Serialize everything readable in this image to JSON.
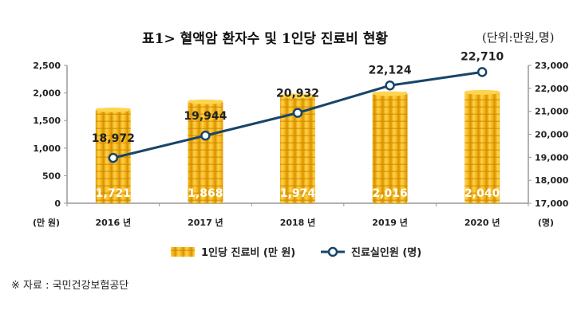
{
  "header": {
    "title": "표1> 혈액암 환자수 및 1인당 진료비 현황",
    "unit": "(단위:만원,명)"
  },
  "source": "※ 자료 : 국민건강보험공단",
  "colors": {
    "bar": "#f2b21c",
    "line": "#17456b"
  },
  "chart_data": {
    "type": "bar+line",
    "categories": [
      "2016 년",
      "2017 년",
      "2018 년",
      "2019 년",
      "2020 년"
    ],
    "series": [
      {
        "name": "1인당 진료비 (만 원)",
        "type": "bar",
        "axis": "left",
        "values": [
          1721,
          1868,
          1974,
          2016,
          2040
        ],
        "labels": [
          "1,721",
          "1,868",
          "1,974",
          "2,016",
          "2,040"
        ]
      },
      {
        "name": "진료실인원 (명)",
        "type": "line",
        "axis": "right",
        "values": [
          18972,
          19944,
          20932,
          22124,
          22710
        ],
        "labels": [
          "18,972",
          "19,944",
          "20,932",
          "22,124",
          "22,710"
        ]
      }
    ],
    "left_axis": {
      "label": "(만 원)",
      "range": [
        0,
        2500
      ],
      "ticks": [
        "0",
        "500",
        "1,000",
        "1,500",
        "2,000",
        "2,500"
      ]
    },
    "right_axis": {
      "label": "(명)",
      "range": [
        17000,
        23000
      ],
      "ticks": [
        "17,000",
        "18,000",
        "19,000",
        "20,000",
        "21,000",
        "22,000",
        "23,000"
      ]
    },
    "grid": false,
    "legend": "bottom"
  }
}
